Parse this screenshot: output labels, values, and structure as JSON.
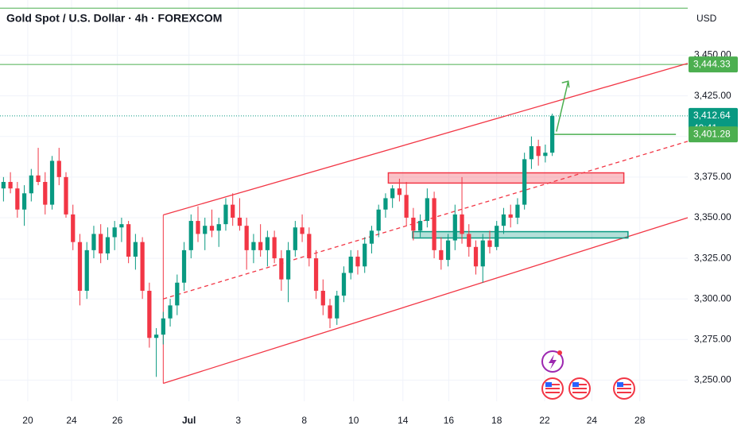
{
  "chart_data": {
    "type": "candlestick",
    "title": "Gold Spot / U.S. Dollar · 4h · FOREXCOM",
    "currency": "USD",
    "up_color": "#089981",
    "down_color": "#f23645",
    "xlim": [
      -0.5,
      98.5
    ],
    "xticks": [
      {
        "value": 3.5,
        "label": "20"
      },
      {
        "value": 9.8,
        "label": "24"
      },
      {
        "value": 16.4,
        "label": "26"
      },
      {
        "value": 26.7,
        "label": "Jul"
      },
      {
        "value": 33.8,
        "label": "3"
      },
      {
        "value": 43.3,
        "label": "8"
      },
      {
        "value": 50.4,
        "label": "10"
      },
      {
        "value": 57.5,
        "label": "14"
      },
      {
        "value": 64.1,
        "label": "16"
      },
      {
        "value": 71,
        "label": "18"
      },
      {
        "value": 77.9,
        "label": "22"
      },
      {
        "value": 84.7,
        "label": "24"
      },
      {
        "value": 91.6,
        "label": "28"
      }
    ],
    "ylim": [
      3237,
      3484
    ],
    "yticks": [
      {
        "value": 3250,
        "label": "3,250.00"
      },
      {
        "value": 3275,
        "label": "3,275.00"
      },
      {
        "value": 3300,
        "label": "3,300.00"
      },
      {
        "value": 3325,
        "label": "3,325.00"
      },
      {
        "value": 3350,
        "label": "3,350.00"
      },
      {
        "value": 3375,
        "label": "3,375.00"
      },
      {
        "value": 3400,
        "label": "3,400.00"
      },
      {
        "value": 3425,
        "label": "3,425.00"
      },
      {
        "value": 3450,
        "label": "3,450.00"
      }
    ],
    "grid": true,
    "open": [
      3368,
      3372,
      3368,
      3355,
      3365,
      3376,
      3372,
      3358,
      3385,
      3375,
      3352,
      3335,
      3305,
      3330,
      3340,
      3328,
      3338,
      3344,
      3346,
      3326,
      3335,
      3305,
      3276,
      3278,
      3288,
      3296,
      3310,
      3330,
      3348,
      3340,
      3345,
      3342,
      3346,
      3358,
      3350,
      3345,
      3330,
      3335,
      3330,
      3338,
      3325,
      3312,
      3330,
      3344,
      3340,
      3325,
      3305,
      3296,
      3288,
      3302,
      3316,
      3326,
      3320,
      3334,
      3342,
      3355,
      3362,
      3368,
      3364,
      3350,
      3342,
      3348,
      3362,
      3330,
      3324,
      3336,
      3352,
      3340,
      3332,
      3320,
      3336,
      3332,
      3345,
      3352,
      3350,
      3358,
      3386,
      3394,
      3388,
      3390
    ],
    "high": [
      3375,
      3378,
      3372,
      3370,
      3380,
      3393,
      3378,
      3388,
      3393,
      3378,
      3358,
      3340,
      3335,
      3345,
      3346,
      3344,
      3348,
      3350,
      3348,
      3340,
      3338,
      3310,
      3282,
      3292,
      3300,
      3315,
      3335,
      3352,
      3357,
      3350,
      3355,
      3350,
      3362,
      3365,
      3362,
      3350,
      3340,
      3346,
      3342,
      3342,
      3330,
      3335,
      3348,
      3352,
      3344,
      3330,
      3312,
      3300,
      3305,
      3320,
      3330,
      3330,
      3338,
      3345,
      3358,
      3365,
      3370,
      3374,
      3372,
      3356,
      3352,
      3368,
      3366,
      3338,
      3340,
      3358,
      3375,
      3346,
      3336,
      3340,
      3342,
      3348,
      3356,
      3358,
      3362,
      3390,
      3400,
      3398,
      3395,
      3414
    ],
    "low": [
      3360,
      3365,
      3350,
      3345,
      3360,
      3370,
      3352,
      3355,
      3370,
      3350,
      3330,
      3296,
      3300,
      3325,
      3322,
      3324,
      3330,
      3335,
      3322,
      3318,
      3300,
      3270,
      3252,
      3272,
      3283,
      3290,
      3305,
      3325,
      3335,
      3330,
      3338,
      3332,
      3342,
      3345,
      3342,
      3318,
      3322,
      3326,
      3320,
      3322,
      3305,
      3298,
      3326,
      3335,
      3320,
      3300,
      3290,
      3282,
      3284,
      3298,
      3312,
      3315,
      3316,
      3328,
      3338,
      3350,
      3356,
      3360,
      3345,
      3336,
      3338,
      3344,
      3325,
      3318,
      3320,
      3330,
      3334,
      3326,
      3315,
      3310,
      3328,
      3330,
      3340,
      3344,
      3346,
      3355,
      3380,
      3382,
      3384,
      3388
    ],
    "close": [
      3372,
      3368,
      3355,
      3365,
      3376,
      3372,
      3358,
      3385,
      3375,
      3352,
      3335,
      3305,
      3330,
      3340,
      3328,
      3338,
      3344,
      3346,
      3326,
      3335,
      3305,
      3276,
      3278,
      3288,
      3296,
      3310,
      3330,
      3348,
      3340,
      3345,
      3342,
      3346,
      3358,
      3350,
      3345,
      3330,
      3335,
      3330,
      3338,
      3325,
      3312,
      3330,
      3344,
      3340,
      3325,
      3305,
      3296,
      3288,
      3302,
      3316,
      3326,
      3320,
      3334,
      3342,
      3355,
      3362,
      3368,
      3364,
      3350,
      3342,
      3348,
      3362,
      3330,
      3324,
      3336,
      3352,
      3340,
      3332,
      3320,
      3336,
      3332,
      3345,
      3352,
      3350,
      3358,
      3386,
      3394,
      3388,
      3390,
      3412.64
    ],
    "price_badges": [
      {
        "value": 3444.33,
        "label": "3,444.33",
        "color": "#4caf50"
      },
      {
        "value": 3412.64,
        "label": "3,412.64",
        "countdown": "40:41",
        "color": "#089981"
      },
      {
        "value": 3401.28,
        "label": "3,401.28",
        "color": "#4caf50"
      }
    ],
    "drawings": {
      "hlines": [
        {
          "price": 3479,
          "color": "#4caf50"
        },
        {
          "price": 3444.33,
          "color": "#4caf50"
        }
      ],
      "last_price_line": {
        "price": 3412.64,
        "color": "#089981"
      },
      "level": {
        "x": [
          79,
          96.8
        ],
        "price": 3401.28,
        "color": "#4caf50"
      },
      "channel": {
        "color": "#f23645",
        "upper": {
          "x": [
            23,
            98.5
          ],
          "price": [
            3351.7,
            3445
          ]
        },
        "middle": {
          "x": [
            23,
            98.5
          ],
          "price": [
            3300,
            3397
          ]
        },
        "lower": {
          "x": [
            23,
            98.5
          ],
          "price": [
            3248,
            3350
          ]
        }
      },
      "zones": [
        {
          "x": [
            55.4,
            89.3
          ],
          "price": [
            3377.6,
            3371.3
          ],
          "color": "#f23645"
        },
        {
          "x": [
            58.9,
            89.9
          ],
          "price": [
            3341.4,
            3337.5
          ],
          "color": "#089981"
        }
      ],
      "arrow": {
        "x": [
          79.6,
          81.3
        ],
        "price": [
          3403,
          3434
        ],
        "color": "#4caf50"
      }
    }
  }
}
